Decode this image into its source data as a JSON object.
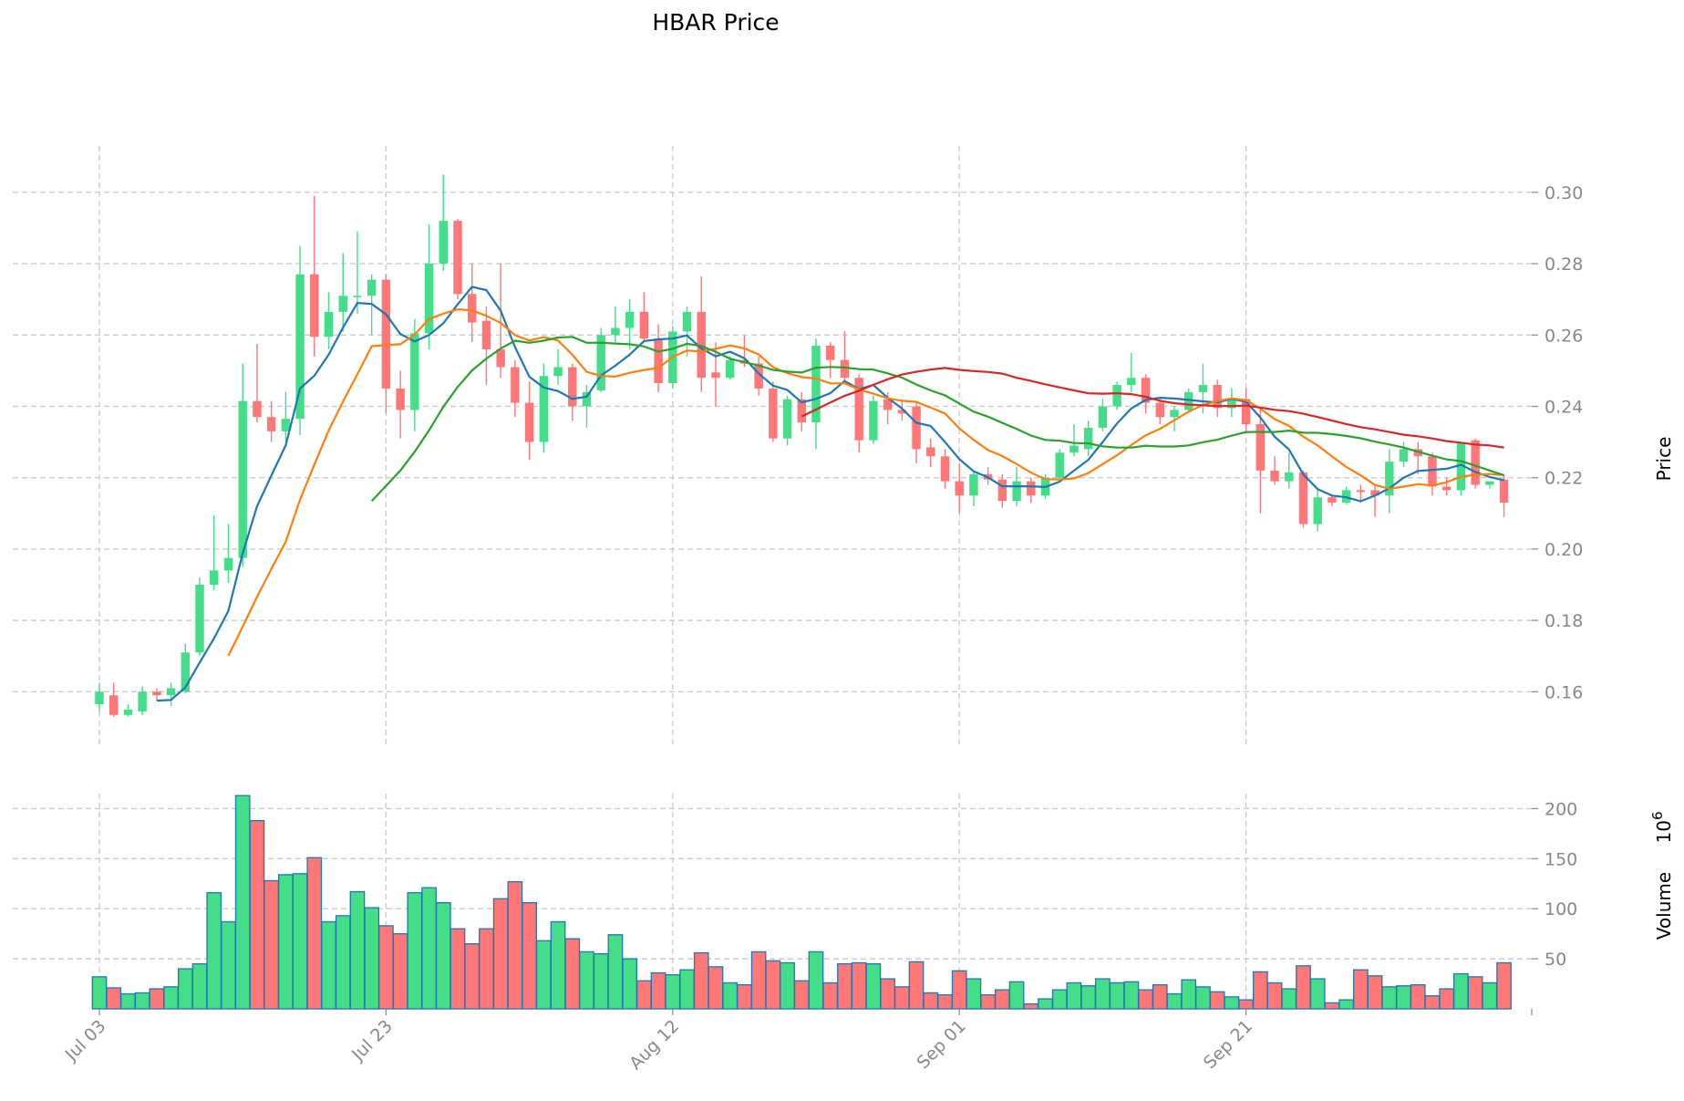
{
  "chart_data": {
    "type": "candlestick",
    "title": "HBAR Price",
    "ylabel_price": "Price",
    "ylabel_volume": "Volume",
    "volume_scale_label": "1e6",
    "volume_scale_base": "10",
    "volume_scale_exp": "6",
    "x_tick_labels": [
      "Jul 03",
      "Jul 23",
      "Aug 12",
      "Sep 01",
      "Sep 21"
    ],
    "x_tick_positions": [
      0,
      20,
      40,
      60,
      80
    ],
    "price_ylim": [
      0.145,
      0.313
    ],
    "price_ticks": [
      0.16,
      0.18,
      0.2,
      0.22,
      0.24,
      0.26,
      0.28,
      0.3
    ],
    "price_tick_labels": [
      "0.16",
      "0.18",
      "0.20",
      "0.22",
      "0.24",
      "0.26",
      "0.28",
      "0.30"
    ],
    "volume_ylim": [
      0,
      215
    ],
    "volume_ticks": [
      50,
      100,
      150,
      200
    ],
    "volume_tick_labels": [
      "50",
      "100",
      "150",
      "200"
    ],
    "grid": true,
    "colors": {
      "up": "#44dd88",
      "down": "#ff7777",
      "volume_edge": "#1f77b4",
      "ma5": "#1f77b4",
      "ma10": "#ff7f0e",
      "ma20": "#2ca02c",
      "ma50": "#d62728",
      "grid": "#cccccc"
    },
    "ohlcv": [
      [
        "Jul 03",
        0.1565,
        0.1625,
        0.1545,
        0.16,
        32
      ],
      [
        "Jul 04",
        0.159,
        0.1625,
        0.153,
        0.1535,
        21
      ],
      [
        "Jul 05",
        0.1535,
        0.1565,
        0.153,
        0.155,
        15
      ],
      [
        "Jul 06",
        0.1545,
        0.1615,
        0.1535,
        0.16,
        16
      ],
      [
        "Jul 07",
        0.16,
        0.161,
        0.1575,
        0.159,
        20
      ],
      [
        "Jul 08",
        0.159,
        0.1625,
        0.156,
        0.161,
        22
      ],
      [
        "Jul 09",
        0.16,
        0.1735,
        0.1595,
        0.171,
        40
      ],
      [
        "Jul 10",
        0.171,
        0.192,
        0.17,
        0.19,
        45
      ],
      [
        "Jul 11",
        0.19,
        0.2095,
        0.1885,
        0.194,
        116
      ],
      [
        "Jul 12",
        0.194,
        0.207,
        0.1905,
        0.1975,
        87
      ],
      [
        "Jul 13",
        0.1975,
        0.252,
        0.195,
        0.2415,
        213
      ],
      [
        "Jul 14",
        0.2415,
        0.2575,
        0.2355,
        0.237,
        188
      ],
      [
        "Jul 15",
        0.237,
        0.2415,
        0.23,
        0.233,
        128
      ],
      [
        "Jul 16",
        0.233,
        0.244,
        0.23,
        0.2365,
        134
      ],
      [
        "Jul 17",
        0.2365,
        0.285,
        0.232,
        0.277,
        135
      ],
      [
        "Jul 18",
        0.277,
        0.299,
        0.254,
        0.2595,
        151
      ],
      [
        "Jul 19",
        0.2595,
        0.272,
        0.256,
        0.2665,
        87
      ],
      [
        "Jul 20",
        0.2665,
        0.283,
        0.261,
        0.271,
        93
      ],
      [
        "Jul 21",
        0.271,
        0.289,
        0.266,
        0.271,
        117
      ],
      [
        "Jul 22",
        0.271,
        0.277,
        0.26,
        0.2755,
        101
      ],
      [
        "Jul 23",
        0.2755,
        0.277,
        0.238,
        0.245,
        83
      ],
      [
        "Jul 24",
        0.245,
        0.25,
        0.231,
        0.239,
        75
      ],
      [
        "Jul 25",
        0.239,
        0.2645,
        0.233,
        0.2605,
        116
      ],
      [
        "Jul 26",
        0.2605,
        0.291,
        0.256,
        0.28,
        121
      ],
      [
        "Jul 27",
        0.28,
        0.305,
        0.278,
        0.292,
        106
      ],
      [
        "Jul 28",
        0.292,
        0.2925,
        0.27,
        0.2715,
        80
      ],
      [
        "Jul 29",
        0.2715,
        0.28,
        0.258,
        0.2635,
        65
      ],
      [
        "Jul 30",
        0.264,
        0.268,
        0.246,
        0.256,
        80
      ],
      [
        "Jul 31",
        0.256,
        0.28,
        0.248,
        0.251,
        110
      ],
      [
        "Aug 01",
        0.251,
        0.253,
        0.237,
        0.241,
        127
      ],
      [
        "Aug 02",
        0.241,
        0.247,
        0.225,
        0.23,
        106
      ],
      [
        "Aug 03",
        0.23,
        0.252,
        0.227,
        0.2485,
        68
      ],
      [
        "Aug 04",
        0.2485,
        0.256,
        0.246,
        0.251,
        87
      ],
      [
        "Aug 05",
        0.251,
        0.252,
        0.236,
        0.24,
        70
      ],
      [
        "Aug 06",
        0.24,
        0.246,
        0.234,
        0.244,
        57
      ],
      [
        "Aug 07",
        0.2445,
        0.262,
        0.244,
        0.26,
        55
      ],
      [
        "Aug 08",
        0.26,
        0.268,
        0.258,
        0.262,
        74
      ],
      [
        "Aug 09",
        0.262,
        0.27,
        0.256,
        0.2665,
        50
      ],
      [
        "Aug 10",
        0.2665,
        0.272,
        0.258,
        0.259,
        28
      ],
      [
        "Aug 11",
        0.259,
        0.263,
        0.244,
        0.2465,
        36
      ],
      [
        "Aug 12",
        0.2465,
        0.2625,
        0.245,
        0.261,
        34
      ],
      [
        "Aug 13",
        0.261,
        0.268,
        0.254,
        0.2665,
        39
      ],
      [
        "Aug 14",
        0.2665,
        0.2765,
        0.244,
        0.248,
        56
      ],
      [
        "Aug 15",
        0.2495,
        0.258,
        0.24,
        0.248,
        42
      ],
      [
        "Aug 16",
        0.248,
        0.254,
        0.2475,
        0.253,
        26
      ],
      [
        "Aug 17",
        0.253,
        0.26,
        0.251,
        0.252,
        24
      ],
      [
        "Aug 18",
        0.252,
        0.254,
        0.243,
        0.245,
        57
      ],
      [
        "Aug 19",
        0.245,
        0.247,
        0.23,
        0.231,
        48
      ],
      [
        "Aug 20",
        0.231,
        0.243,
        0.229,
        0.242,
        46
      ],
      [
        "Aug 21",
        0.242,
        0.244,
        0.233,
        0.2355,
        28
      ],
      [
        "Aug 22",
        0.2355,
        0.259,
        0.228,
        0.257,
        57
      ],
      [
        "Aug 23",
        0.257,
        0.258,
        0.248,
        0.253,
        26
      ],
      [
        "Aug 24",
        0.253,
        0.261,
        0.247,
        0.248,
        45
      ],
      [
        "Aug 25",
        0.248,
        0.249,
        0.227,
        0.2305,
        46
      ],
      [
        "Aug 26",
        0.2305,
        0.243,
        0.2295,
        0.2415,
        45
      ],
      [
        "Aug 27",
        0.242,
        0.244,
        0.235,
        0.239,
        30
      ],
      [
        "Aug 28",
        0.239,
        0.242,
        0.236,
        0.238,
        22
      ],
      [
        "Aug 29",
        0.24,
        0.241,
        0.224,
        0.228,
        47
      ],
      [
        "Aug 30",
        0.2285,
        0.231,
        0.223,
        0.226,
        16
      ],
      [
        "Aug 31",
        0.226,
        0.228,
        0.217,
        0.219,
        14
      ],
      [
        "Sep 01",
        0.219,
        0.224,
        0.21,
        0.215,
        38
      ],
      [
        "Sep 02",
        0.215,
        0.222,
        0.212,
        0.221,
        30
      ],
      [
        "Sep 03",
        0.221,
        0.223,
        0.218,
        0.2195,
        14
      ],
      [
        "Sep 04",
        0.2195,
        0.221,
        0.2115,
        0.2135,
        19
      ],
      [
        "Sep 05",
        0.2135,
        0.223,
        0.212,
        0.219,
        27
      ],
      [
        "Sep 06",
        0.219,
        0.22,
        0.213,
        0.215,
        5
      ],
      [
        "Sep 07",
        0.215,
        0.221,
        0.214,
        0.22,
        10
      ],
      [
        "Sep 08",
        0.22,
        0.228,
        0.219,
        0.227,
        19
      ],
      [
        "Sep 09",
        0.227,
        0.235,
        0.226,
        0.229,
        26
      ],
      [
        "Sep 10",
        0.228,
        0.236,
        0.226,
        0.234,
        23
      ],
      [
        "Sep 11",
        0.234,
        0.242,
        0.233,
        0.24,
        30
      ],
      [
        "Sep 12",
        0.24,
        0.247,
        0.239,
        0.246,
        26
      ],
      [
        "Sep 13",
        0.246,
        0.255,
        0.244,
        0.248,
        27
      ],
      [
        "Sep 14",
        0.248,
        0.249,
        0.238,
        0.241,
        19
      ],
      [
        "Sep 15",
        0.241,
        0.242,
        0.235,
        0.237,
        24
      ],
      [
        "Sep 16",
        0.237,
        0.24,
        0.233,
        0.239,
        15
      ],
      [
        "Sep 17",
        0.239,
        0.245,
        0.238,
        0.244,
        29
      ],
      [
        "Sep 18",
        0.244,
        0.252,
        0.238,
        0.246,
        22
      ],
      [
        "Sep 19",
        0.246,
        0.2475,
        0.237,
        0.2395,
        17
      ],
      [
        "Sep 20",
        0.2395,
        0.245,
        0.237,
        0.242,
        12
      ],
      [
        "Sep 21",
        0.242,
        0.245,
        0.233,
        0.235,
        9
      ],
      [
        "Sep 22",
        0.235,
        0.239,
        0.21,
        0.222,
        37
      ],
      [
        "Sep 23",
        0.222,
        0.226,
        0.218,
        0.219,
        26
      ],
      [
        "Sep 24",
        0.219,
        0.227,
        0.217,
        0.2215,
        20
      ],
      [
        "Sep 25",
        0.2215,
        0.222,
        0.206,
        0.207,
        43
      ],
      [
        "Sep 26",
        0.207,
        0.217,
        0.205,
        0.2145,
        30
      ],
      [
        "Sep 27",
        0.2145,
        0.215,
        0.212,
        0.213,
        6
      ],
      [
        "Sep 28",
        0.213,
        0.2175,
        0.2125,
        0.2165,
        9
      ],
      [
        "Sep 29",
        0.2165,
        0.218,
        0.213,
        0.216,
        39
      ],
      [
        "Sep 30",
        0.2165,
        0.218,
        0.209,
        0.215,
        33
      ],
      [
        "Oct 01",
        0.215,
        0.228,
        0.21,
        0.2245,
        22
      ],
      [
        "Oct 02",
        0.2245,
        0.23,
        0.223,
        0.228,
        23
      ],
      [
        "Oct 03",
        0.228,
        0.23,
        0.221,
        0.226,
        24
      ],
      [
        "Oct 04",
        0.226,
        0.227,
        0.215,
        0.2175,
        13
      ],
      [
        "Oct 05",
        0.2175,
        0.22,
        0.215,
        0.2165,
        20
      ],
      [
        "Oct 06",
        0.2165,
        0.23,
        0.215,
        0.23,
        35
      ],
      [
        "Oct 07",
        0.2305,
        0.231,
        0.217,
        0.218,
        32
      ],
      [
        "Oct 08",
        0.218,
        0.219,
        0.217,
        0.219,
        26
      ],
      [
        "Oct 09",
        0.2195,
        0.221,
        0.209,
        0.213,
        46
      ]
    ]
  }
}
